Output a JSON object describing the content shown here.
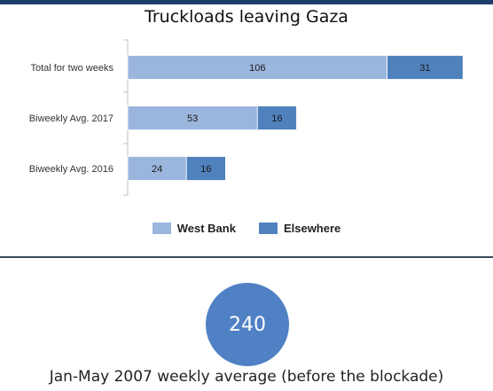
{
  "colors": {
    "west_bank": "#9bb6dd",
    "elsewhere": "#4f81bd",
    "circle": "#4f81c4",
    "divider": "#3a4a5c"
  },
  "chart_data": {
    "type": "bar",
    "orientation": "horizontal",
    "stacked": true,
    "title": "Truckloads leaving Gaza",
    "categories": [
      "Total for two weeks",
      "Biweekly Avg. 2017",
      "Biweekly Avg. 2016"
    ],
    "series": [
      {
        "name": "West Bank",
        "values": [
          106,
          53,
          24
        ]
      },
      {
        "name": "Elsewhere",
        "values": [
          31,
          16,
          16
        ]
      }
    ],
    "xlim": [
      0,
      142
    ],
    "grid": false,
    "legend_position": "bottom"
  },
  "summary": {
    "value": "240",
    "caption": "Jan-May 2007 weekly average (before the blockade)"
  }
}
